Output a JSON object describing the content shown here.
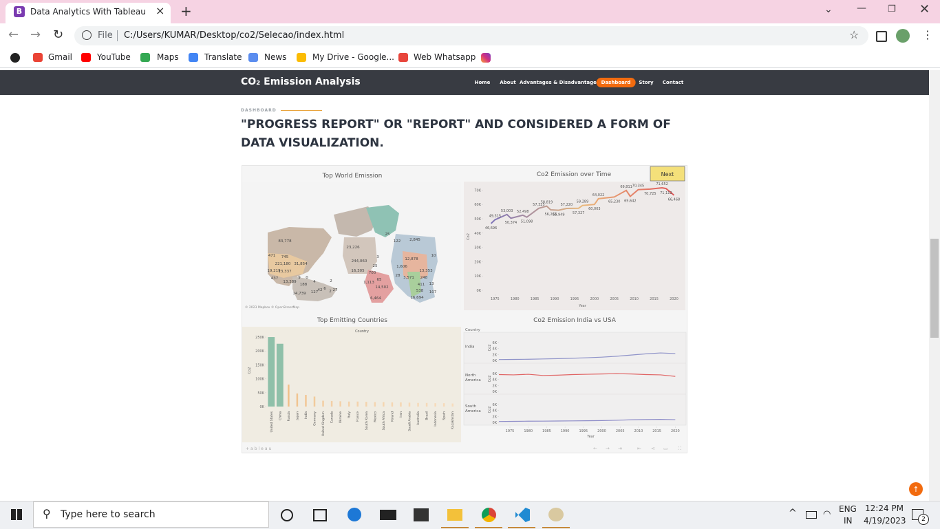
{
  "browser": {
    "tab_title": "Data Analytics With Tableau",
    "address_prefix": "File",
    "address": "C:/Users/KUMAR/Desktop/co2/Selecao/index.html",
    "bookmarks": [
      "Gmail",
      "YouTube",
      "Maps",
      "Translate",
      "News",
      "My Drive - Google...",
      "Web Whatsapp"
    ]
  },
  "site": {
    "brand": "CO₂ Emission Analysis",
    "nav": [
      "Home",
      "About",
      "Advantages & Disadvantages",
      "Dashboard",
      "Story",
      "Contact"
    ],
    "active_nav": 3,
    "section_label": "DASHBOARD",
    "heading": "\"PROGRESS REPORT\" OR \"REPORT\" AND CONSIDERED A FORM OF DATA VISUALIZATION."
  },
  "dashboard": {
    "next_button": "Next",
    "logo": "+ableau",
    "map": {
      "title": "Top World Emission",
      "credit": "© 2023 Mapbox © OpenStreetMap",
      "labels": [
        "83,778",
        "23,226",
        "244,060",
        "25",
        "122",
        "2,845",
        "25",
        "471",
        "745",
        "221,180",
        "31,854",
        "19,219",
        "13,337",
        "437",
        "13,389",
        "9",
        "0",
        "188",
        "4",
        "2",
        "127",
        "42",
        "6",
        "2",
        "27",
        "14,739",
        "16,305",
        "700",
        "1,113",
        "65",
        "14,502",
        "6,464",
        "1,606",
        "28",
        "3,571",
        "12,878",
        "13,353",
        "411",
        "13",
        "107",
        "538",
        "16,694",
        "10",
        "3",
        "248"
      ]
    }
  },
  "chart_data": [
    {
      "type": "line",
      "title": "Co2 Emission over Time",
      "x_label": "Year",
      "y_label": "Co2",
      "x": [
        1974,
        1975,
        1978,
        1979,
        1982,
        1983,
        1986,
        1988,
        1989,
        1991,
        1993,
        1996,
        1997,
        2000,
        2001,
        2005,
        2008,
        2009,
        2011,
        2014,
        2017,
        2018,
        2020
      ],
      "values": [
        46696,
        49315,
        53003,
        50374,
        52498,
        51098,
        57325,
        58819,
        56268,
        55949,
        57220,
        57327,
        59289,
        60003,
        64022,
        65230,
        69811,
        65642,
        70345,
        70725,
        71652,
        71112,
        66468
      ],
      "value_labels": [
        "46,696",
        "49,315",
        "53,003",
        "50,374",
        "52,498",
        "51,098",
        "57,325",
        "58,819",
        "56,268",
        "55,949",
        "57,220",
        "57,327",
        "59,289",
        "60,003",
        "64,022",
        "65,230",
        "69,811",
        "65,642",
        "70,345",
        "70,725",
        "71,652",
        "71,112",
        "66,468"
      ],
      "colors": [
        "#7d72b8",
        "#e9b87a",
        "#e0585a"
      ],
      "xlim": [
        1972,
        2022
      ],
      "xticks": [
        1975,
        1980,
        1985,
        1990,
        1995,
        2000,
        2005,
        2010,
        2015,
        2020
      ],
      "ylim": [
        0,
        75000
      ],
      "yticks": [
        {
          "value": 0,
          "label": "0K"
        },
        {
          "value": 10000,
          "label": "10K"
        },
        {
          "value": 20000,
          "label": "20K"
        },
        {
          "value": 30000,
          "label": "30K"
        },
        {
          "value": 40000,
          "label": "40K"
        },
        {
          "value": 50000,
          "label": "50K"
        },
        {
          "value": 60000,
          "label": "60K"
        },
        {
          "value": 70000,
          "label": "70K"
        }
      ]
    },
    {
      "type": "bar",
      "title": "Top Emitting Countries",
      "x_label": "Country",
      "y_label": "Co2",
      "categories": [
        "United States",
        "China",
        "Russia",
        "Japan",
        "India",
        "Germany",
        "United Kingdom",
        "Canada",
        "Ukraine",
        "Italy",
        "France",
        "South Korea",
        "Mexico",
        "South Africa",
        "Poland",
        "Iran",
        "Saudi Arabia",
        "Australia",
        "Brazil",
        "Indonesia",
        "Spain",
        "Kazakhstan"
      ],
      "values": [
        250000,
        226000,
        79000,
        47000,
        42000,
        36000,
        21000,
        20000,
        19000,
        18000,
        18000,
        17000,
        16000,
        16000,
        15000,
        15000,
        14000,
        13000,
        13000,
        12000,
        12000,
        11000
      ],
      "colors": [
        "#8fc0a9",
        "#8fc0a9",
        "#f1c089",
        "#f1c491",
        "#f2c796",
        "#f2ca9c",
        "#f3cea3",
        "#f3cfa6",
        "#f4d1a9",
        "#f4d2ab",
        "#f4d2ab",
        "#f4d3ad",
        "#f5d5b0",
        "#f5d5b0",
        "#f5d6b2",
        "#f5d6b2",
        "#f6d8b5",
        "#f6d9b7",
        "#f6d9b7",
        "#f6dab9",
        "#f6dab9",
        "#f7dcbc"
      ],
      "ylim": [
        0,
        260000
      ],
      "yticks": [
        {
          "value": 0,
          "label": "0K"
        },
        {
          "value": 50000,
          "label": "50K"
        },
        {
          "value": 100000,
          "label": "100K"
        },
        {
          "value": 150000,
          "label": "150K"
        },
        {
          "value": 200000,
          "label": "200K"
        },
        {
          "value": 250000,
          "label": "250K"
        }
      ]
    },
    {
      "type": "line",
      "facets": true,
      "title": "Co2 Emission India vs USA",
      "facet_label": "Country",
      "x_label": "Year",
      "y_label": "Co2",
      "x": [
        1972,
        1976,
        1980,
        1984,
        1988,
        1992,
        1996,
        2000,
        2004,
        2008,
        2012,
        2016,
        2020
      ],
      "series": [
        {
          "name": "India",
          "color": "#8f93c9",
          "values": [
            300,
            350,
            400,
            500,
            600,
            750,
            900,
            1100,
            1400,
            1800,
            2200,
            2500,
            2300
          ]
        },
        {
          "name": "North America",
          "color": "#e06464",
          "values": [
            5600,
            5500,
            5700,
            5300,
            5400,
            5600,
            5700,
            5800,
            5900,
            5800,
            5600,
            5500,
            5000
          ]
        },
        {
          "name": "South America",
          "color": "#8d8cc8",
          "values": [
            300,
            350,
            400,
            420,
            450,
            500,
            550,
            600,
            700,
            850,
            950,
            1000,
            900
          ]
        }
      ],
      "xlim": [
        1972,
        2022
      ],
      "xticks": [
        1975,
        1980,
        1985,
        1990,
        1995,
        2000,
        2005,
        2010,
        2015,
        2020
      ],
      "ylim": [
        0,
        8000
      ],
      "yticks": [
        {
          "value": 0,
          "label": "0K"
        },
        {
          "value": 2000,
          "label": "2K"
        },
        {
          "value": 4000,
          "label": "4K"
        },
        {
          "value": 6000,
          "label": "6K"
        }
      ]
    }
  ],
  "taskbar": {
    "search": "Type here to search",
    "language": "ENG",
    "region": "IN",
    "time": "12:24 PM",
    "date": "4/19/2023",
    "notifications": "2"
  }
}
